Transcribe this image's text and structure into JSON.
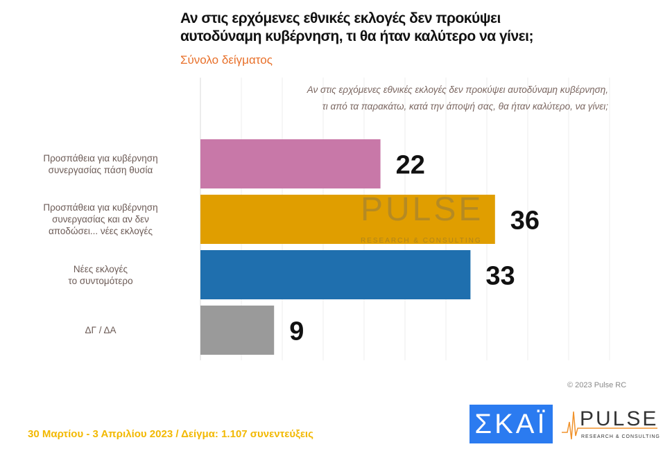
{
  "header": {
    "title_line1": "Αν στις ερχόμενες εθνικές εκλογές δεν προκύψει",
    "title_line2": "αυτοδύναμη κυβέρνηση, τι θα ήταν καλύτερο να γίνει;",
    "subtitle": "Σύνολο δείγματος",
    "question_line1": "Αν στις ερχόμενες εθνικές εκλογές δεν προκύψει αυτοδύναμη κυβέρνηση,",
    "question_line2": "τι από τα παρακάτω, κατά την άποψή σας, θα ήταν καλύτερο, να γίνει;"
  },
  "chart_data": {
    "type": "bar",
    "orientation": "horizontal",
    "categories": [
      [
        "Προσπάθεια για κυβέρνηση",
        "συνεργασίας πάση θυσία"
      ],
      [
        "Προσπάθεια για κυβέρνηση",
        "συνεργασίας και αν δεν",
        "αποδώσει... νέες εκλογές"
      ],
      [
        "Νέες εκλογές",
        "το συντομότερο"
      ],
      [
        "ΔΓ / ΔΑ"
      ]
    ],
    "values": [
      22,
      36,
      33,
      9
    ],
    "colors": [
      "#C878A8",
      "#E09E00",
      "#1F6FAE",
      "#9A9A9A"
    ],
    "xlim": [
      0,
      50
    ],
    "grid": true
  },
  "watermark": {
    "brand": "PULSE",
    "tagline": "RESEARCH & CONSULTING"
  },
  "footer": {
    "date_sample": "30 Μαρτίου - 3  Απριλίου  2023  /  Δείγμα:  1.107 συνεντεύξεις",
    "copyright": "© 2023 Pulse RC",
    "skai_logo": "ΣΚΑΪ",
    "pulse_logo": "PULSE",
    "pulse_tagline": "RESEARCH & CONSULTING"
  }
}
